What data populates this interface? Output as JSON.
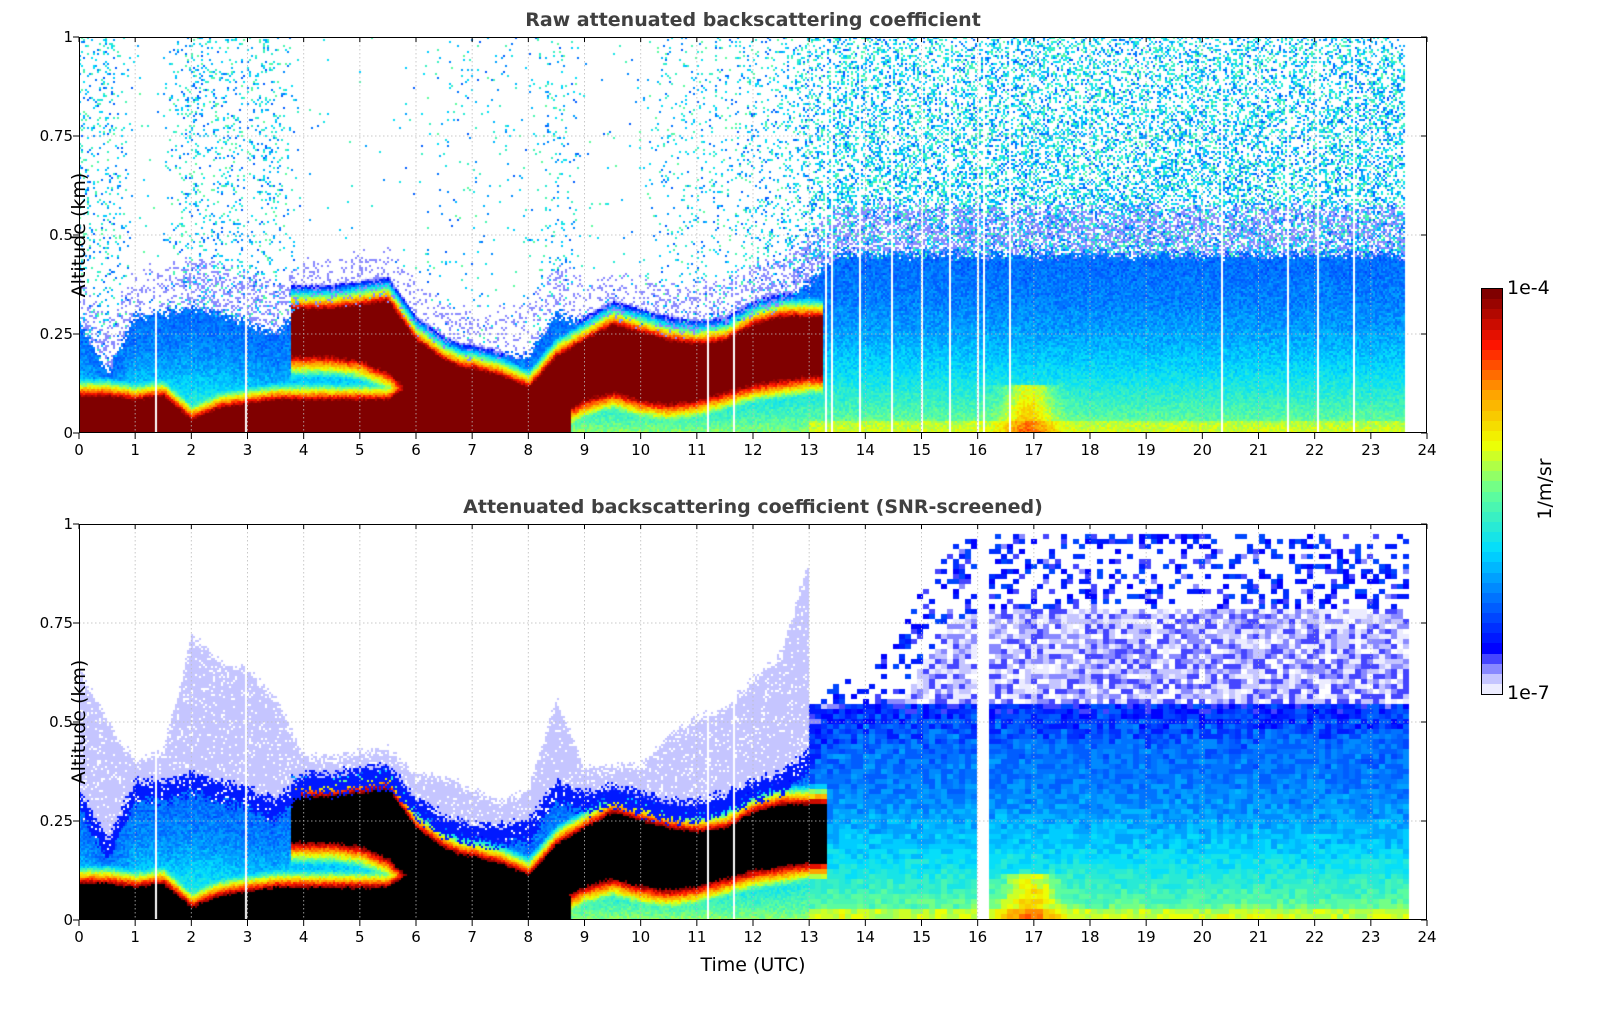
{
  "chart_data": [
    {
      "type": "heatmap",
      "title": "Raw attenuated backscattering coefficient",
      "xlabel": "",
      "ylabel": "Altitude (km)",
      "xlim": [
        0,
        24
      ],
      "ylim": [
        0,
        1
      ],
      "screened": false,
      "grid": true
    },
    {
      "type": "heatmap",
      "title": "Attenuated backscattering coefficient (SNR-screened)",
      "xlabel": "Time (UTC)",
      "ylabel": "Altitude (km)",
      "xlim": [
        0,
        24
      ],
      "ylim": [
        0,
        1
      ],
      "screened": true,
      "grid": true
    }
  ],
  "axes": {
    "x_ticks": [
      "0",
      "1",
      "2",
      "3",
      "4",
      "5",
      "6",
      "7",
      "8",
      "9",
      "10",
      "11",
      "12",
      "13",
      "14",
      "15",
      "16",
      "17",
      "18",
      "19",
      "20",
      "21",
      "22",
      "23",
      "24"
    ],
    "y_ticks": [
      "0",
      "0.25",
      "0.5",
      "0.75",
      "1"
    ],
    "x_tick_values": [
      0,
      1,
      2,
      3,
      4,
      5,
      6,
      7,
      8,
      9,
      10,
      11,
      12,
      13,
      14,
      15,
      16,
      17,
      18,
      19,
      20,
      21,
      22,
      23,
      24
    ],
    "y_tick_values": [
      0,
      0.25,
      0.5,
      0.75,
      1
    ]
  },
  "colorbar": {
    "label": "1/m/sr",
    "max_label": "1e-4",
    "min_label": "1e-7",
    "log10_range": [
      -7,
      -4
    ],
    "levels": 40,
    "scale": "log"
  },
  "profile_model": {
    "time_step_h": 0.5,
    "data_end_utc": 23.6,
    "missing_profiles_utc": [
      1.35,
      2.95,
      11.2,
      11.65,
      13.3,
      13.4,
      13.9,
      14.45,
      15.0,
      15.5,
      16.0,
      16.1,
      16.55,
      20.35,
      21.5,
      22.05,
      22.7
    ],
    "boundary_layer_top_km": [
      0.28,
      0.15,
      0.3,
      0.3,
      0.32,
      0.3,
      0.28,
      0.25,
      0.32,
      0.32,
      0.33,
      0.34,
      0.26,
      0.21,
      0.19,
      0.19,
      0.2,
      0.3,
      0.27,
      0.29,
      0.27,
      0.25,
      0.25,
      0.27,
      0.3,
      0.32,
      0.38,
      0.45,
      0.45,
      0.45,
      0.45,
      0.45,
      0.45,
      0.45,
      0.45,
      0.45,
      0.45,
      0.45,
      0.45,
      0.45,
      0.45,
      0.45,
      0.45,
      0.45,
      0.45,
      0.45,
      0.45,
      0.45
    ],
    "surface_layer_top_km": [
      0.08,
      0.08,
      0.07,
      0.08,
      0.02,
      0.05,
      0.06,
      0.07,
      0.07,
      0.07,
      0.07,
      0.07,
      0.12,
      0.15,
      0.15,
      0.13,
      0.1,
      0.05,
      0,
      0,
      0,
      0,
      0,
      0,
      0,
      0,
      0,
      0,
      0,
      0,
      0,
      0,
      0,
      0,
      0,
      0,
      0,
      0,
      0,
      0,
      0,
      0,
      0,
      0,
      0,
      0,
      0,
      0
    ],
    "elevated_layer_bottom_km": [
      0,
      0,
      0,
      0,
      0,
      0,
      0,
      0,
      0.21,
      0.21,
      0.2,
      0.17,
      0.1,
      0.08,
      0.07,
      0.06,
      0.03,
      0.06,
      0.1,
      0.12,
      0.1,
      0.09,
      0.1,
      0.12,
      0.14,
      0.15,
      0.16,
      0,
      0,
      0,
      0,
      0,
      0,
      0,
      0,
      0,
      0,
      0,
      0,
      0,
      0,
      0,
      0,
      0,
      0,
      0,
      0,
      0
    ],
    "elevated_layer_top_km": [
      0,
      0,
      0,
      0,
      0,
      0,
      0,
      0,
      0.3,
      0.3,
      0.31,
      0.32,
      0.22,
      0.17,
      0.14,
      0.13,
      0.1,
      0.18,
      0.22,
      0.26,
      0.24,
      0.22,
      0.21,
      0.22,
      0.26,
      0.28,
      0.28,
      0,
      0,
      0,
      0,
      0,
      0,
      0,
      0,
      0,
      0,
      0,
      0,
      0,
      0,
      0,
      0,
      0,
      0,
      0,
      0,
      0
    ],
    "noise_speckle_density": [
      0.3,
      0.3,
      0.02,
      0.05,
      0.35,
      0.3,
      0.3,
      0.25,
      0.01,
      0.01,
      0.01,
      0.01,
      0.02,
      0.08,
      0.06,
      0.03,
      0.05,
      0.2,
      0.03,
      0.02,
      0.04,
      0.15,
      0.2,
      0.2,
      0.25,
      0.3,
      0.5,
      0.7,
      0.7,
      0.7,
      0.7,
      0.7,
      0.7,
      0.7,
      0.7,
      0.7,
      0.7,
      0.7,
      0.7,
      0.7,
      0.7,
      0.7,
      0.7,
      0.7,
      0.7,
      0.7,
      0.7,
      0.7
    ],
    "screened_signal_top_km": [
      0,
      0,
      0,
      0,
      0,
      0,
      0,
      0,
      0,
      0,
      0,
      0,
      0,
      0,
      0,
      0,
      0,
      0,
      0,
      0,
      0,
      0,
      0,
      0,
      0,
      0,
      0.55,
      0.6,
      0.62,
      0.7,
      0.85,
      0.95,
      0.98,
      0.98,
      0.98,
      0.98,
      0.98,
      0.98,
      0.98,
      0.98,
      0.98,
      0.98,
      0.98,
      0.98,
      0.98,
      0.98,
      0.98,
      0.98
    ]
  }
}
